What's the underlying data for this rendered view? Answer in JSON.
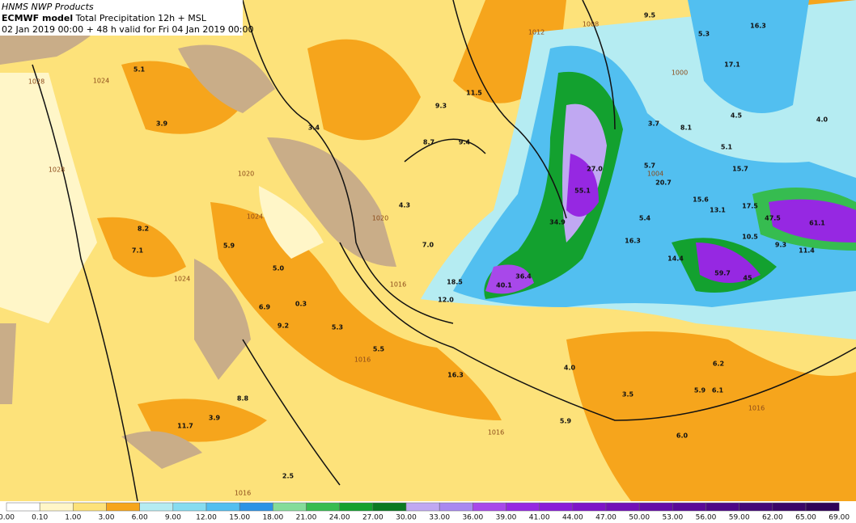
{
  "header": {
    "source": "HNMS NWP Products",
    "model": "ECMWF model",
    "product": "Total Precipitation 12h + MSL",
    "valid": "02 Jan 2019 00:00 + 48 h valid for Fri 04 Jan 2019 00:00"
  },
  "labels": [
    "5.1",
    "3.9",
    "3.4",
    "8.7",
    "9.4",
    "9.3",
    "11.5",
    "9.5",
    "5.3",
    "16.3",
    "17.1",
    "4.5",
    "4.0",
    "3.7",
    "8.1",
    "5.1",
    "5.7",
    "15.7",
    "20.7",
    "15.6",
    "13.1",
    "17.5",
    "47.5",
    "61.1",
    "55.1",
    "4.3",
    "8.2",
    "7.1",
    "5.9",
    "5.0",
    "7.0",
    "6.9",
    "0.3",
    "9.2",
    "5.3",
    "5.5",
    "12.0",
    "18.5",
    "40.1",
    "36.4",
    "34.9",
    "27.0",
    "10.5",
    "9.3",
    "14.4",
    "59.7",
    "45",
    "11.4",
    "16.3",
    "5.4",
    "4.0",
    "6.2",
    "5.9",
    "6.1",
    "3.5",
    "5.9",
    "6.0",
    "2.5",
    "11.7",
    "3.9",
    "8.8",
    "16.3"
  ],
  "isobars": [
    "1028",
    "1024",
    "1020",
    "1024",
    "1020",
    "1016",
    "1016",
    "1012",
    "1008",
    "1004",
    "1000",
    "1028",
    "1024",
    "1016",
    "1016",
    "1016"
  ],
  "legend": {
    "labels": [
      "0.00",
      "0.10",
      "1.00",
      "3.00",
      "6.00",
      "9.00",
      "12.00",
      "15.00",
      "18.00",
      "21.00",
      "24.00",
      "27.00",
      "30.00",
      "33.00",
      "36.00",
      "39.00",
      "41.00",
      "44.00",
      "47.00",
      "50.00",
      "53.00",
      "56.00",
      "59.00",
      "62.00",
      "65.00",
      "69.00"
    ],
    "colors": [
      "#ffffff",
      "#fff6c8",
      "#fde27a",
      "#f6a51c",
      "#b5ecf2",
      "#86dcf0",
      "#52bff0",
      "#2b93e6",
      "#84dc9a",
      "#36bc50",
      "#13a12f",
      "#0a7a22",
      "#c0a8f2",
      "#a888f0",
      "#a848ea",
      "#9628e2",
      "#8a1cd8",
      "#7e14c8",
      "#7210b8",
      "#660ca8",
      "#5a0a98",
      "#4e0888",
      "#440878",
      "#3a0668",
      "#300458"
    ]
  }
}
